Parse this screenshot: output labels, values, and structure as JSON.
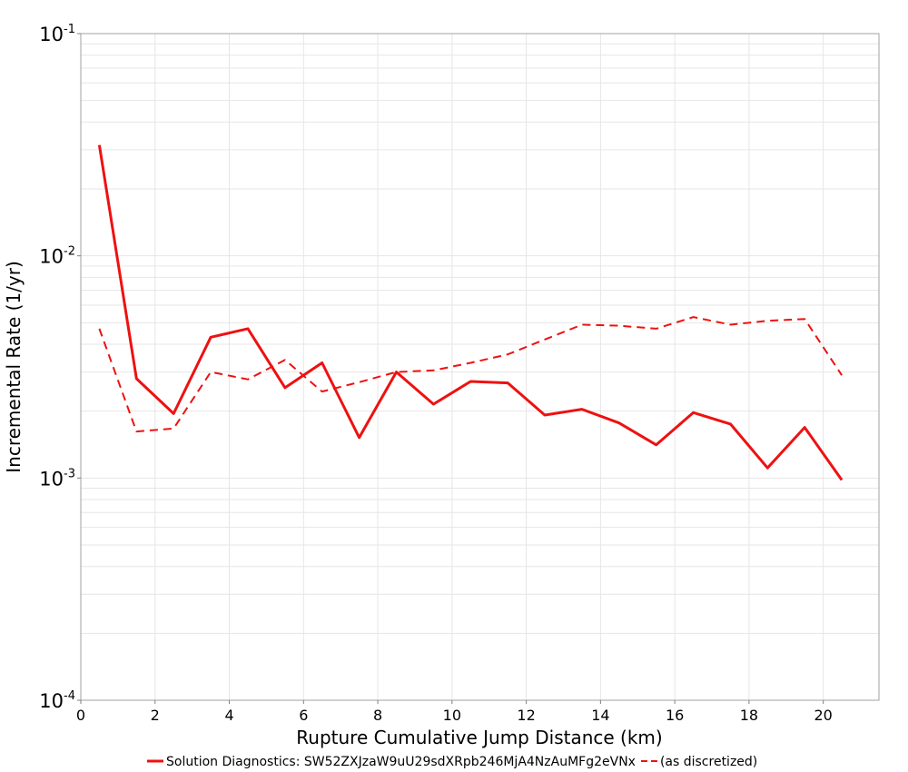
{
  "chart_data": {
    "type": "line",
    "xlabel": "Rupture Cumulative Jump Distance (km)",
    "ylabel": "Incremental Rate (1/yr)",
    "xlim": [
      0,
      21.5
    ],
    "ylim": [
      0.0001,
      0.1
    ],
    "yscale": "log",
    "grid": true,
    "legend_position": "bottom",
    "x_ticks": [
      "0",
      "2",
      "4",
      "6",
      "8",
      "10",
      "12",
      "14",
      "16",
      "18",
      "20"
    ],
    "y_ticks": [
      {
        "base": "10",
        "exp": "-4"
      },
      {
        "base": "10",
        "exp": "-3"
      },
      {
        "base": "10",
        "exp": "-2"
      },
      {
        "base": "10",
        "exp": "-1"
      }
    ],
    "x": [
      0.5,
      1.5,
      2.5,
      3.5,
      4.5,
      5.5,
      6.5,
      7.5,
      8.5,
      9.5,
      10.5,
      11.5,
      12.5,
      13.5,
      14.5,
      15.5,
      16.5,
      17.5,
      18.5,
      19.5,
      20.5
    ],
    "series": [
      {
        "name": "Solution Diagnostics: SW52ZXJzaW9uU29sdXRpb246MjA4NzAuMFg2eVNx",
        "style": "solid",
        "color": "#ee1111",
        "values": [
          0.0315,
          0.0028,
          0.00195,
          0.0043,
          0.0047,
          0.00255,
          0.0033,
          0.00152,
          0.003,
          0.00215,
          0.00272,
          0.00268,
          0.00192,
          0.00204,
          0.00177,
          0.00141,
          0.00197,
          0.00175,
          0.00111,
          0.00169,
          0.00098
        ]
      },
      {
        "name": "(as discretized)",
        "style": "dashed",
        "color": "#ee1111",
        "values": [
          0.0047,
          0.00162,
          0.00167,
          0.003,
          0.00278,
          0.0034,
          0.00245,
          0.0027,
          0.003,
          0.00305,
          0.0033,
          0.0036,
          0.0042,
          0.0049,
          0.00485,
          0.0047,
          0.0053,
          0.0049,
          0.0051,
          0.0052,
          0.0029
        ]
      }
    ]
  }
}
